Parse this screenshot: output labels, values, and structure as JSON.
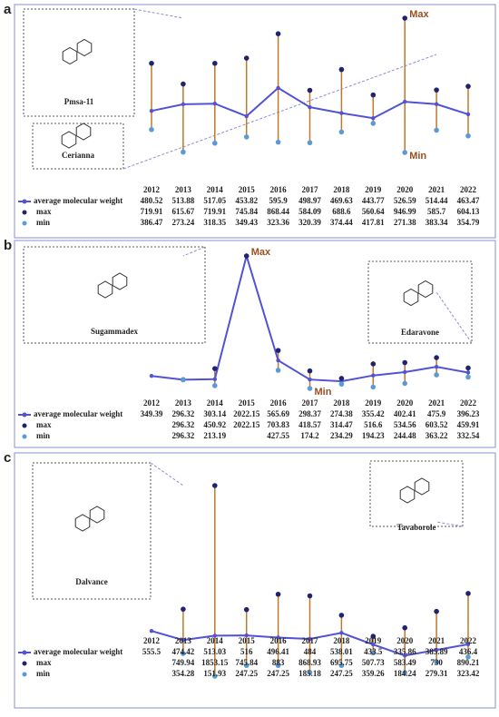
{
  "chart_data": [
    {
      "type": "line",
      "label": "a",
      "compounds": [
        "Pmsa-11",
        "Cerianna"
      ],
      "annotations": [
        "Max",
        "Min"
      ],
      "whisker_color": "#c0782a",
      "categories": [
        "2012",
        "2013",
        "2014",
        "2015",
        "2016",
        "2017",
        "2018",
        "2019",
        "2020",
        "2021",
        "2022"
      ],
      "series": [
        {
          "name": "average molecular weight",
          "color": "#5252d6",
          "values": [
            480.52,
            513.88,
            517.05,
            453.82,
            595.9,
            498.97,
            469.63,
            443.77,
            526.59,
            514.44,
            463.47
          ]
        },
        {
          "name": "max",
          "color": "#1f2370",
          "values": [
            719.91,
            615.67,
            719.91,
            745.84,
            868.44,
            584.09,
            688.6,
            560.64,
            946.99,
            585.7,
            604.13
          ]
        },
        {
          "name": "min",
          "color": "#5b9bd5",
          "values": [
            386.47,
            273.24,
            318.35,
            349.43,
            323.36,
            320.39,
            374.44,
            417.81,
            271.38,
            383.34,
            354.79
          ]
        }
      ]
    },
    {
      "type": "line",
      "label": "b",
      "compounds": [
        "Sugammadex",
        "Edaravone"
      ],
      "annotations": [
        "Max",
        "Min"
      ],
      "whisker_color": "#c0782a",
      "categories": [
        "2012",
        "2013",
        "2014",
        "2015",
        "2016",
        "2017",
        "2018",
        "2019",
        "2020",
        "2021",
        "2022"
      ],
      "series": [
        {
          "name": "average molecular weight",
          "color": "#5252d6",
          "values": [
            349.39,
            296.32,
            303.14,
            2022.15,
            565.69,
            298.37,
            274.38,
            355.42,
            402.41,
            475.9,
            396.23
          ]
        },
        {
          "name": "max",
          "color": "#1f2370",
          "values": [
            null,
            296.32,
            450.92,
            2022.15,
            703.83,
            418.57,
            314.47,
            516.6,
            534.56,
            603.52,
            459.91
          ]
        },
        {
          "name": "min",
          "color": "#5b9bd5",
          "values": [
            null,
            296.32,
            213.19,
            null,
            427.55,
            174.2,
            234.29,
            194.23,
            244.48,
            363.22,
            332.54
          ]
        }
      ]
    },
    {
      "type": "line",
      "label": "c",
      "compounds": [
        "Dalvance",
        "Tavaborole"
      ],
      "annotations": [],
      "whisker_color": "#c0782a",
      "categories": [
        "2012",
        "2013",
        "2014",
        "2015",
        "2016",
        "2017",
        "2018",
        "2019",
        "2020",
        "2021",
        "2022"
      ],
      "series": [
        {
          "name": "average molecular weight",
          "color": "#5252d6",
          "values": [
            555.5,
            474.42,
            513.03,
            516,
            496.41,
            484,
            538.01,
            433.5,
            335.86,
            385.89,
            436.4
          ]
        },
        {
          "name": "max",
          "color": "#1f2370",
          "values": [
            null,
            749.94,
            1853.15,
            745.84,
            883,
            868.93,
            695.75,
            507.73,
            583.49,
            730,
            890.21
          ]
        },
        {
          "name": "min",
          "color": "#5b9bd5",
          "values": [
            null,
            354.28,
            151.93,
            247.25,
            247.25,
            185.18,
            247.25,
            359.26,
            184.24,
            279.31,
            323.42
          ]
        }
      ]
    }
  ]
}
